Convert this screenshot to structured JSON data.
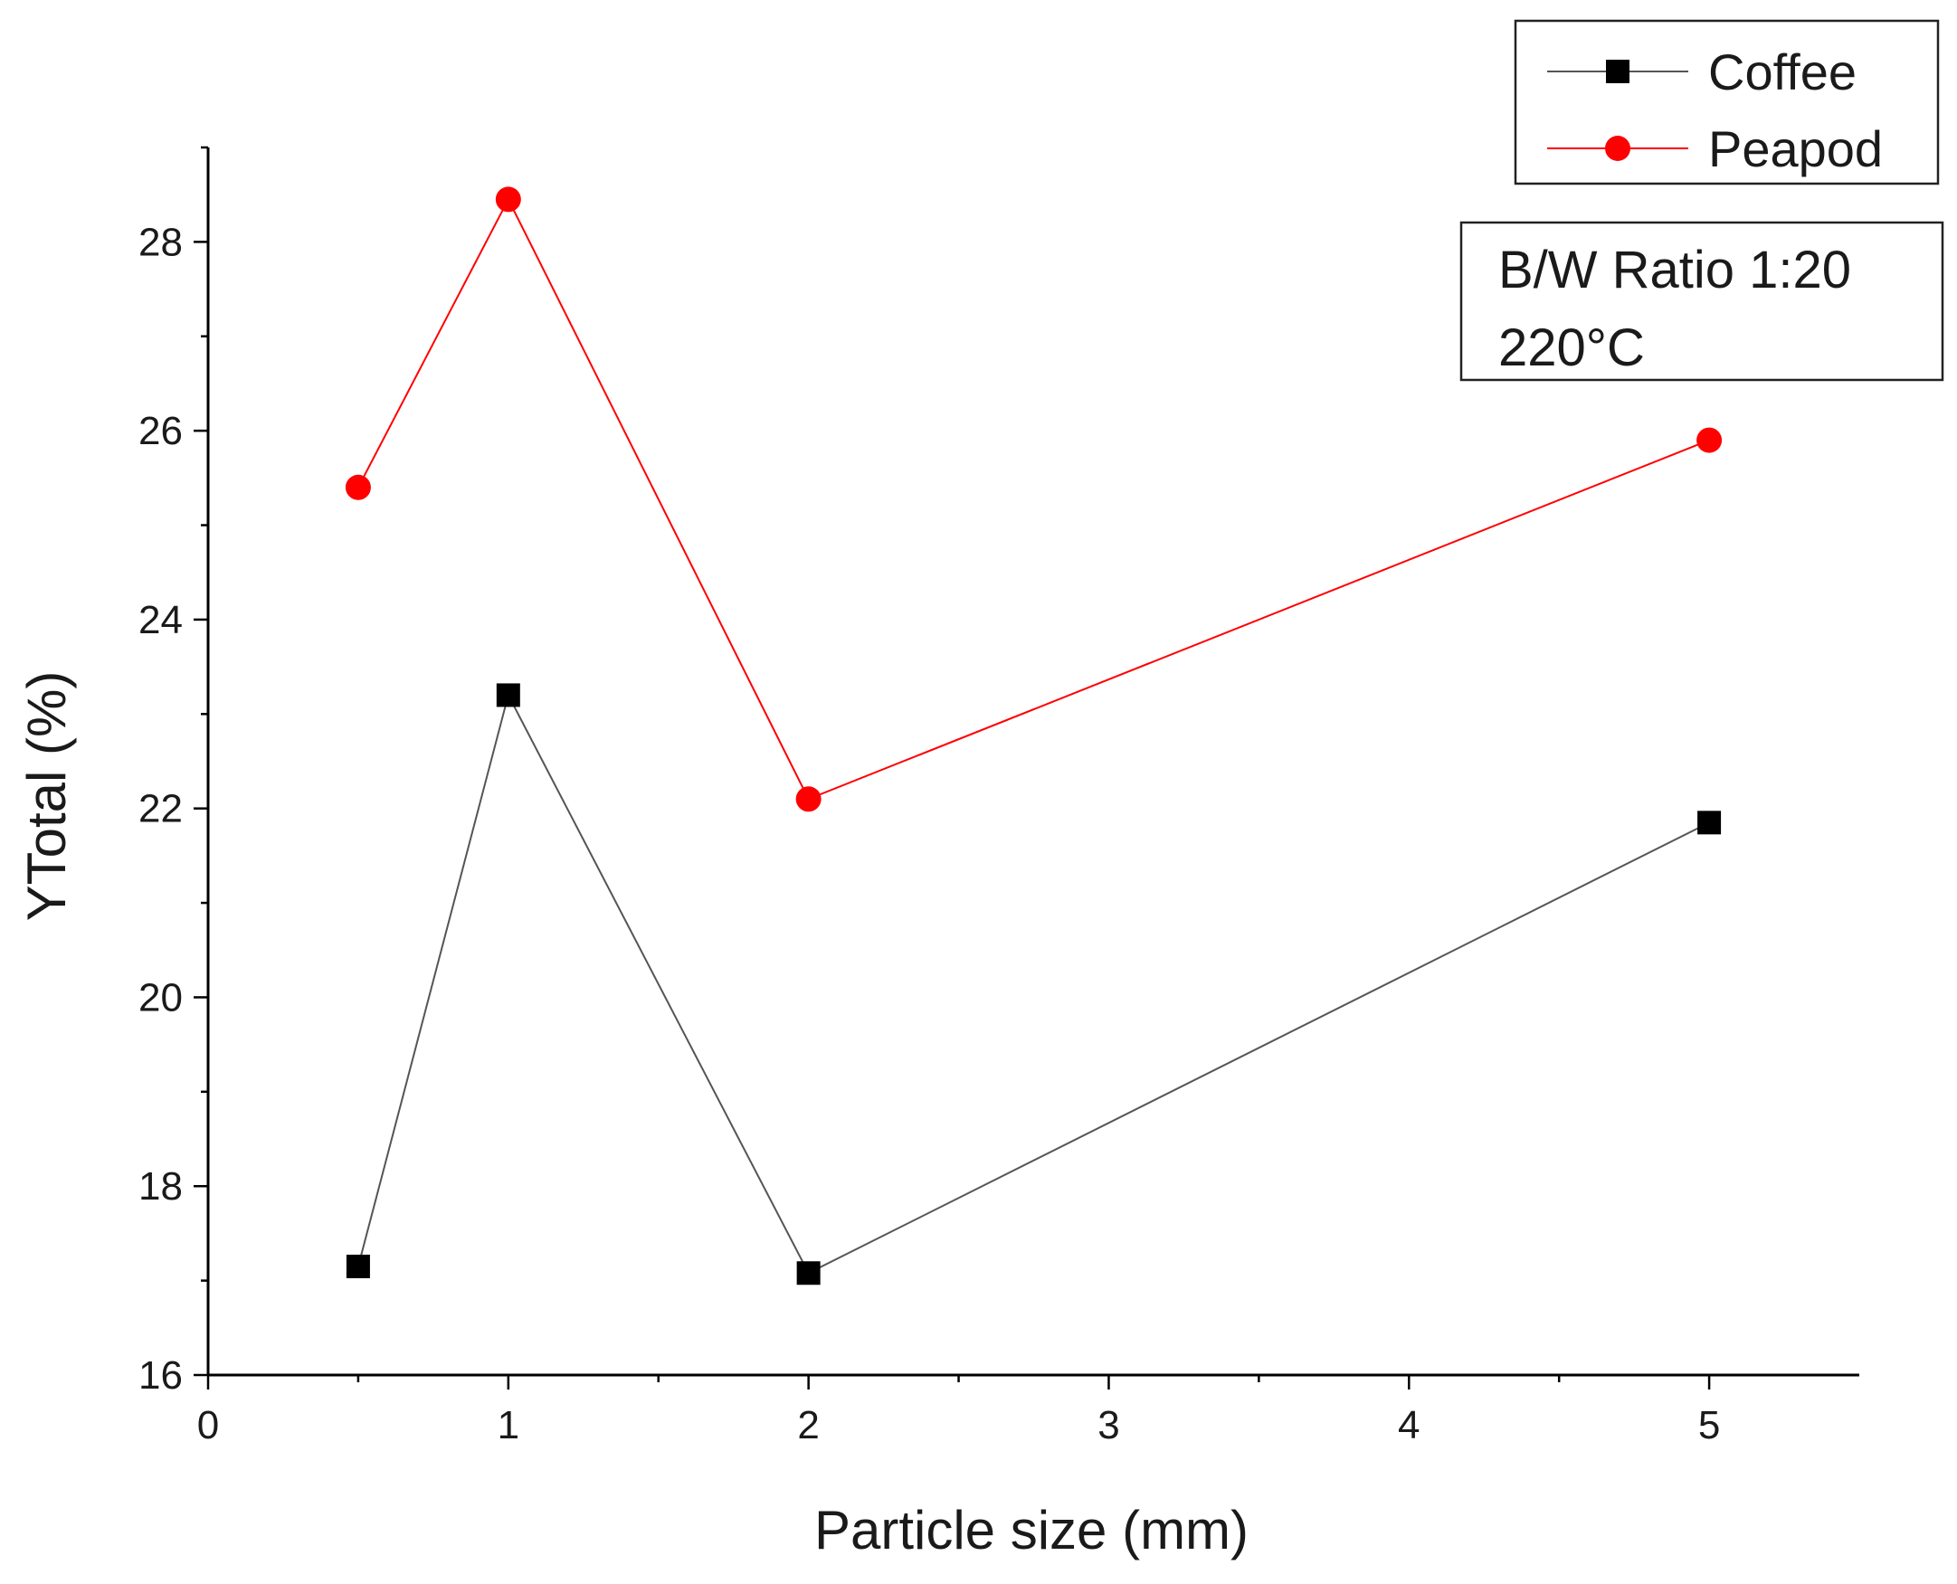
{
  "chart_data": {
    "type": "line",
    "title": "",
    "xlabel": "Particle size (mm)",
    "ylabel": "YTotal (%)",
    "x_ticks": [
      "0",
      "1",
      "2",
      "3",
      "4",
      "5"
    ],
    "x_tick_positions": [
      0,
      1,
      2,
      3,
      4,
      5
    ],
    "xlim": [
      0,
      5.5
    ],
    "y_ticks": [
      "16",
      "18",
      "20",
      "22",
      "24",
      "26",
      "28"
    ],
    "y_tick_values": [
      16,
      18,
      20,
      22,
      24,
      26,
      28
    ],
    "ylim": [
      16,
      29
    ],
    "x": [
      0.5,
      1,
      2,
      5
    ],
    "series": [
      {
        "name": "Coffee",
        "color": "#000000",
        "line_color": "#555555",
        "marker": "square",
        "values": [
          17.15,
          23.2,
          17.08,
          21.85
        ]
      },
      {
        "name": "Peapod",
        "color": "#ff0000",
        "line_color": "#ff0000",
        "marker": "circle",
        "values": [
          25.4,
          28.45,
          22.1,
          25.9
        ]
      }
    ],
    "legend_position": "top-right",
    "annotation": [
      "B/W Ratio 1:20",
      "220°C"
    ],
    "grid": false
  }
}
